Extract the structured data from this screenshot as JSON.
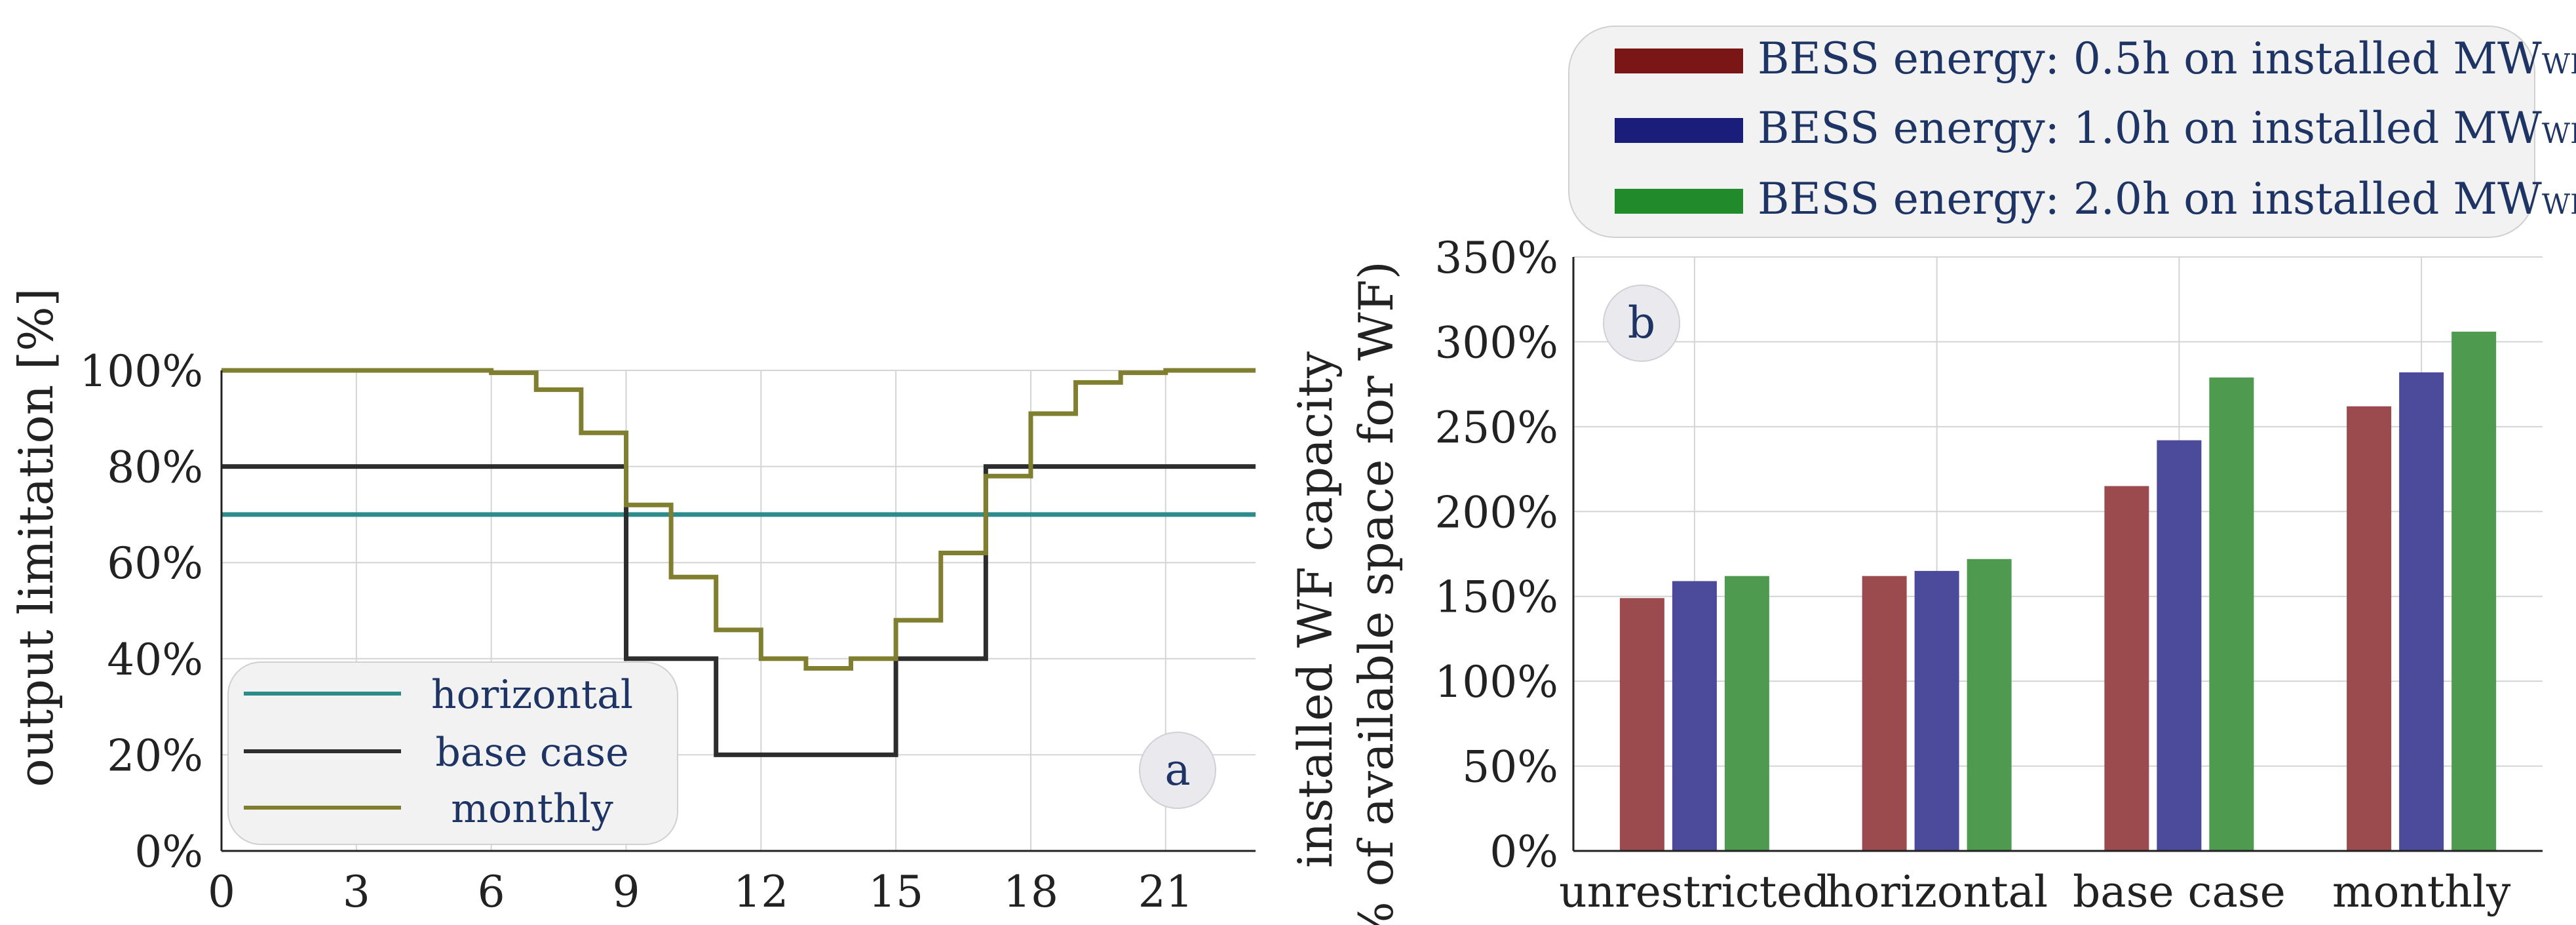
{
  "chart_data": [
    {
      "type": "line",
      "panel_label": "a",
      "ylabel": "output limitation [%]",
      "xlabel": "",
      "xlim": [
        0,
        23
      ],
      "ylim": [
        0,
        100
      ],
      "xticks": [
        0,
        3,
        6,
        9,
        12,
        15,
        18,
        21
      ],
      "xtick_labels": [
        "0",
        "3",
        "6",
        "9",
        "12",
        "15",
        "18",
        "21"
      ],
      "yticks": [
        0,
        20,
        40,
        60,
        80,
        100
      ],
      "ytick_labels": [
        "0%",
        "20%",
        "40%",
        "60%",
        "80%",
        "100%"
      ],
      "grid": true,
      "legend_position": "bottom-left",
      "series": [
        {
          "name": "horizontal",
          "color": "#2e8b8b",
          "step": true,
          "x": [
            0,
            23
          ],
          "y": [
            70,
            70
          ]
        },
        {
          "name": "base case",
          "color": "#2d2d2d",
          "step": true,
          "x": [
            0,
            9,
            11,
            15,
            17,
            23
          ],
          "y": [
            80,
            40,
            20,
            40,
            80,
            80
          ]
        },
        {
          "name": "monthly",
          "color": "#7f7f2f",
          "step": true,
          "x": [
            0,
            6,
            7,
            8,
            9,
            10,
            11,
            12,
            13,
            14,
            15,
            16,
            17,
            18,
            19,
            20,
            21,
            23
          ],
          "y": [
            100,
            99.5,
            96,
            87,
            72,
            57,
            46,
            40,
            38,
            40,
            48,
            62,
            78,
            91,
            97.5,
            99.5,
            100,
            100
          ]
        }
      ]
    },
    {
      "type": "bar",
      "panel_label": "b",
      "ylabel_line1": "installed WF capacity",
      "ylabel_line2": "(% of available space for WF)",
      "xlabel": "",
      "ylim": [
        0,
        350
      ],
      "yticks": [
        0,
        50,
        100,
        150,
        200,
        250,
        300,
        350
      ],
      "ytick_labels": [
        "0%",
        "50%",
        "100%",
        "150%",
        "200%",
        "250%",
        "300%",
        "350%"
      ],
      "grid": true,
      "legend_position": "top",
      "categories": [
        "unrestricted",
        "horizontal",
        "base case",
        "monthly"
      ],
      "series": [
        {
          "name_prefix": "BESS energy: 0.5h on installed MW",
          "name_sub": "WF",
          "legend_color": "#7b1616",
          "color": "#9b4a4e",
          "values": [
            149,
            162,
            215,
            262
          ]
        },
        {
          "name_prefix": "BESS energy: 1.0h on installed MW",
          "name_sub": "WF",
          "legend_color": "#1a1d7a",
          "color": "#4c4b9b",
          "values": [
            159,
            165,
            242,
            282
          ]
        },
        {
          "name_prefix": "BESS energy: 2.0h on installed MW",
          "name_sub": "WF",
          "legend_color": "#218a2a",
          "color": "#4e9b50",
          "values": [
            162,
            172,
            279,
            306
          ]
        }
      ]
    }
  ]
}
